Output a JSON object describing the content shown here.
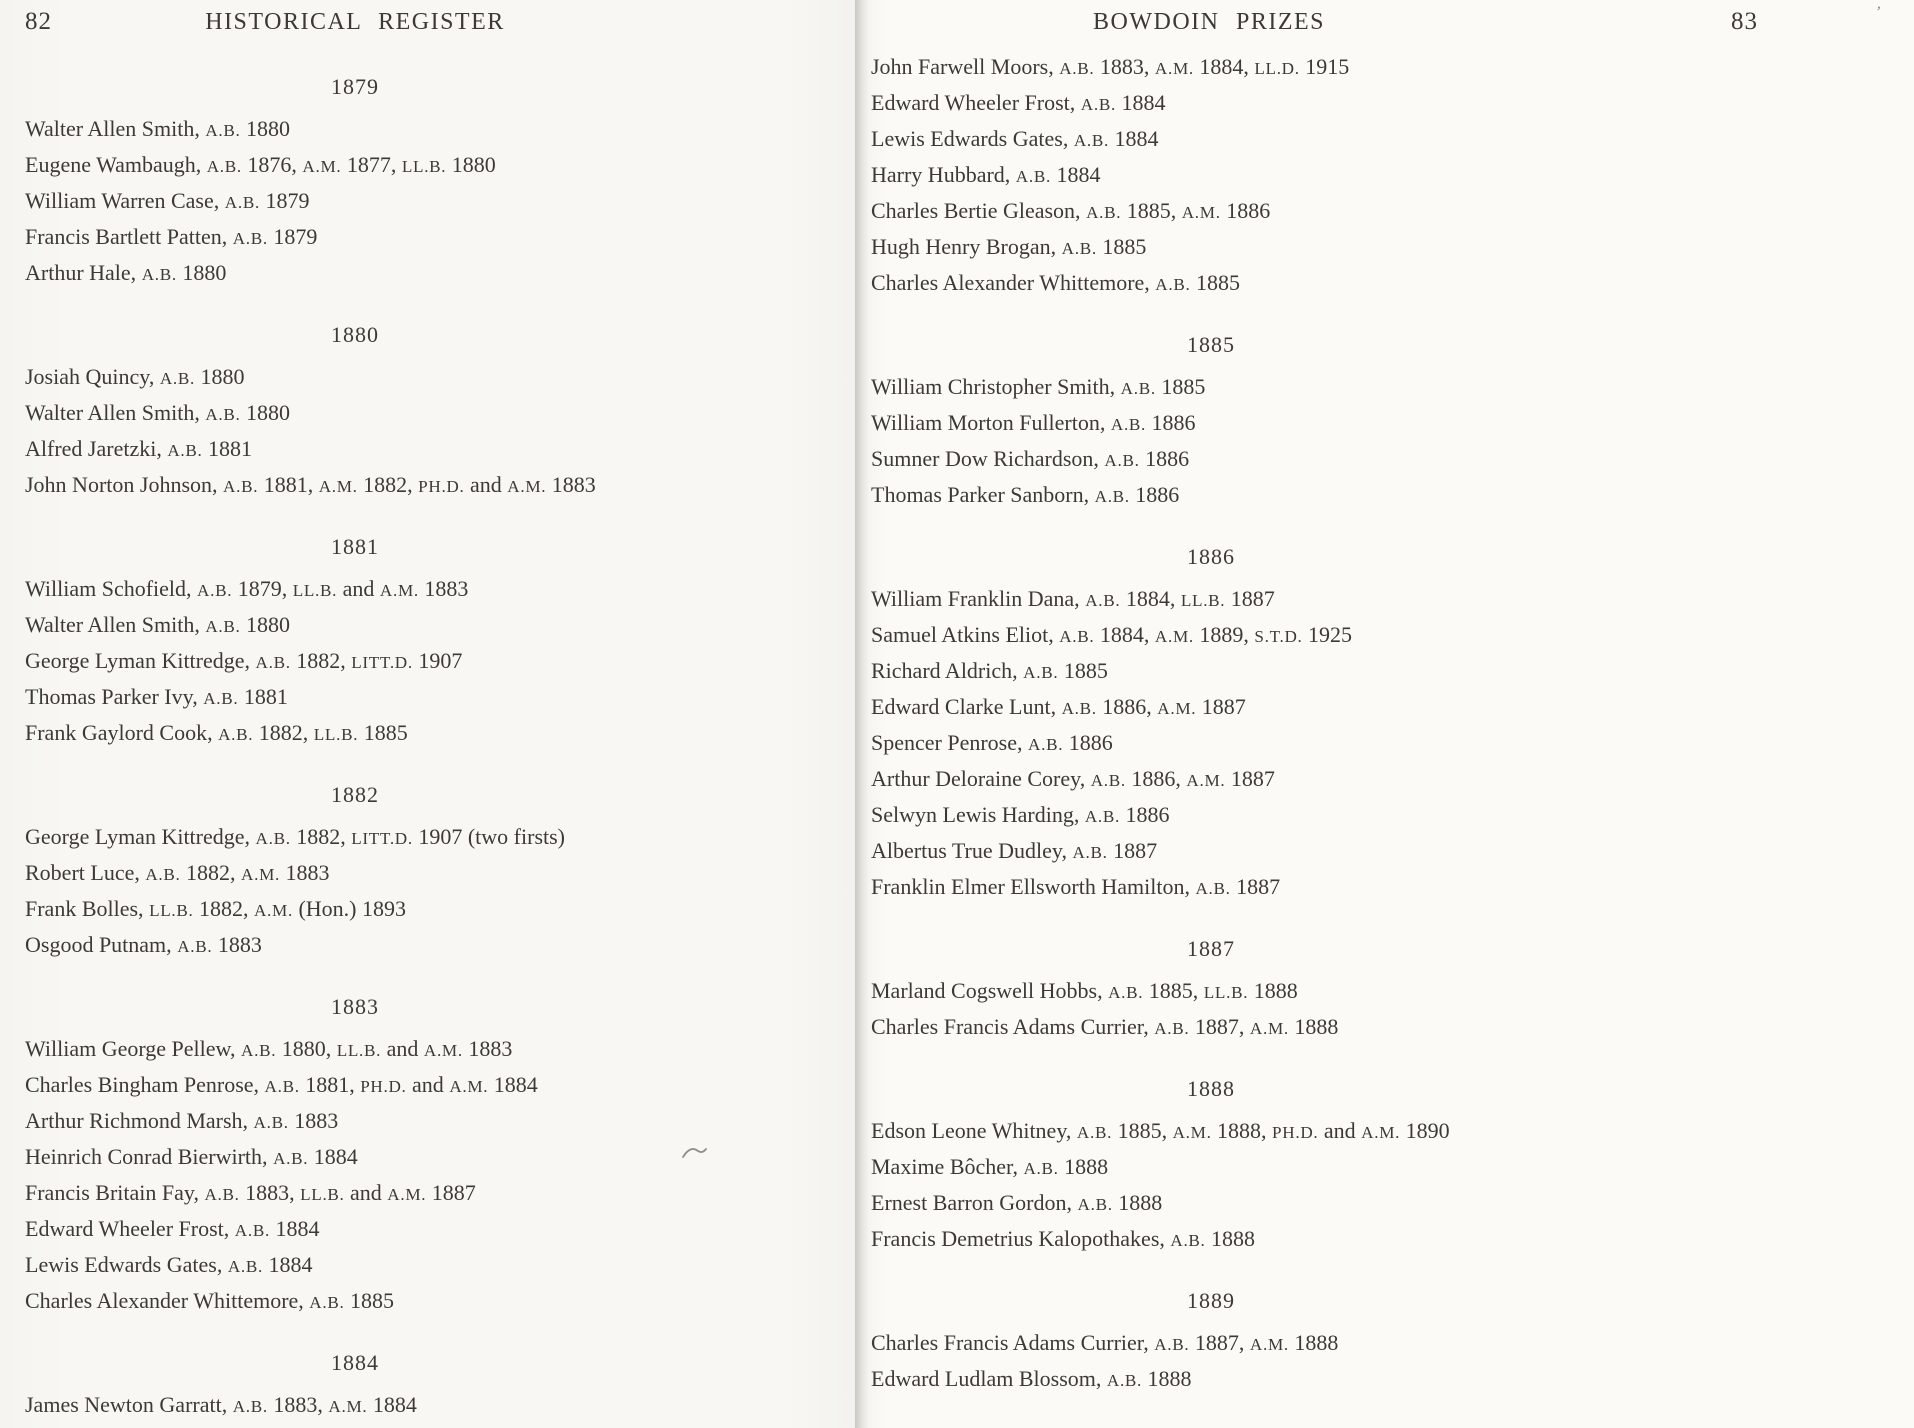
{
  "scan": {
    "left_page": {
      "page_number": "82",
      "title": "HISTORICAL REGISTER",
      "sections": [
        {
          "year": "1879",
          "entries": [
            "Walter Allen Smith, A.B. 1880",
            "Eugene Wambaugh, A.B. 1876, A.M. 1877, LL.B. 1880",
            "William Warren Case, A.B. 1879",
            "Francis Bartlett Patten, A.B. 1879",
            "Arthur Hale, A.B. 1880"
          ]
        },
        {
          "year": "1880",
          "entries": [
            "Josiah Quincy, A.B. 1880",
            "Walter Allen Smith, A.B. 1880",
            "Alfred Jaretzki, A.B. 1881",
            "John Norton Johnson, A.B. 1881, A.M. 1882, PH.D. and A.M. 1883"
          ]
        },
        {
          "year": "1881",
          "entries": [
            "William Schofield, A.B. 1879, LL.B. and A.M. 1883",
            "Walter Allen Smith, A.B. 1880",
            "George Lyman Kittredge, A.B. 1882, LITT.D. 1907",
            "Thomas Parker Ivy, A.B. 1881",
            "Frank Gaylord Cook, A.B. 1882, LL.B. 1885"
          ]
        },
        {
          "year": "1882",
          "entries": [
            "George Lyman Kittredge, A.B. 1882, LITT.D. 1907 (two firsts)",
            "Robert Luce, A.B. 1882, A.M. 1883",
            "Frank Bolles, LL.B. 1882, A.M. (Hon.) 1893",
            "Osgood Putnam, A.B. 1883"
          ]
        },
        {
          "year": "1883",
          "entries": [
            "William George Pellew, A.B. 1880, LL.B. and A.M. 1883",
            "Charles Bingham Penrose, A.B. 1881, PH.D. and A.M. 1884",
            "Arthur Richmond Marsh, A.B. 1883",
            "Heinrich Conrad Bierwirth, A.B. 1884",
            "Francis Britain Fay, A.B. 1883, LL.B. and A.M. 1887",
            "Edward Wheeler Frost, A.B. 1884",
            "Lewis Edwards Gates, A.B. 1884",
            "Charles Alexander Whittemore, A.B. 1885"
          ]
        },
        {
          "year": "1884",
          "entries": [
            "James Newton Garratt, A.B. 1883, A.M. 1884"
          ]
        }
      ]
    },
    "right_page": {
      "page_number": "83",
      "title": "BOWDOIN PRIZES",
      "sections": [
        {
          "year": "",
          "entries": [
            "John Farwell Moors, A.B. 1883, A.M. 1884, LL.D. 1915",
            "Edward Wheeler Frost, A.B. 1884",
            "Lewis Edwards Gates, A.B. 1884",
            "Harry Hubbard, A.B. 1884",
            "Charles Bertie Gleason, A.B. 1885, A.M. 1886",
            "Hugh Henry Brogan, A.B. 1885",
            "Charles Alexander Whittemore, A.B. 1885"
          ]
        },
        {
          "year": "1885",
          "entries": [
            "William Christopher Smith, A.B. 1885",
            "William Morton Fullerton, A.B. 1886",
            "Sumner Dow Richardson, A.B. 1886",
            "Thomas Parker Sanborn, A.B. 1886"
          ]
        },
        {
          "year": "1886",
          "entries": [
            "William Franklin Dana, A.B. 1884, LL.B. 1887",
            "Samuel Atkins Eliot, A.B. 1884, A.M. 1889, S.T.D. 1925",
            "Richard Aldrich, A.B. 1885",
            "Edward Clarke Lunt, A.B. 1886, A.M. 1887",
            "Spencer Penrose, A.B. 1886",
            "Arthur Deloraine Corey, A.B. 1886, A.M. 1887",
            "Selwyn Lewis Harding, A.B. 1886",
            "Albertus True Dudley, A.B. 1887",
            "Franklin Elmer Ellsworth Hamilton, A.B. 1887"
          ]
        },
        {
          "year": "1887",
          "entries": [
            "Marland Cogswell Hobbs, A.B. 1885, LL.B. 1888",
            "Charles Francis Adams Currier, A.B. 1887, A.M. 1888"
          ]
        },
        {
          "year": "1888",
          "entries": [
            "Edson Leone Whitney, A.B. 1885, A.M. 1888, PH.D. and A.M. 1890",
            "Maxime Bôcher, A.B. 1888",
            "Ernest Barron Gordon, A.B. 1888",
            "Francis Demetrius Kalopothakes, A.B. 1888"
          ]
        },
        {
          "year": "1889",
          "entries": [
            "Charles Francis Adams Currier, A.B. 1887, A.M. 1888",
            "Edward Ludlam Blossom, A.B. 1888"
          ]
        }
      ]
    }
  }
}
